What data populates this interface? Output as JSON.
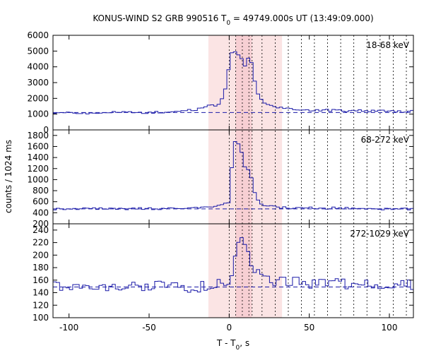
{
  "chart_data": {
    "type": "line",
    "title": {
      "prefix": "KONUS-WIND S2 GRB 990516 T",
      "sub": "0",
      "suffix": " = 49749.000s UT (13:49:09.000)"
    },
    "xlabel": {
      "prefix": "T - T",
      "sub": "0",
      "suffix": ", s"
    },
    "ylabel": "counts / 1024 ms",
    "xlim": [
      -110,
      115
    ],
    "x_ticks": [
      -100,
      -50,
      0,
      50,
      100
    ],
    "bin_width_s": 2.048,
    "colors": {
      "line": "#1a1aa8",
      "baseline": "#1a1aa8",
      "shade": "#fbe4e4",
      "shade_inner": "#f7cfd3"
    },
    "shaded_interval": [
      -13,
      33
    ],
    "inner_shaded_interval": [
      4,
      14
    ],
    "vertical_dotted_lines": [
      0,
      4.1,
      8.2,
      12.3,
      14.3,
      20.5,
      28.7,
      36.9,
      45.1,
      53.2,
      61.4,
      69.6,
      77.8,
      86.0,
      94.2,
      102.4,
      110.6
    ],
    "panels": [
      {
        "label": "18-68 keV",
        "ylim": [
          0,
          6000
        ],
        "y_ticks": [
          0,
          1000,
          2000,
          3000,
          4000,
          5000,
          6000
        ],
        "baseline": 1100,
        "light_curve": [
          [
            -110,
            1100
          ],
          [
            -90,
            1080
          ],
          [
            -70,
            1100
          ],
          [
            -50,
            1110
          ],
          [
            -40,
            1130
          ],
          [
            -30,
            1180
          ],
          [
            -20,
            1280
          ],
          [
            -14,
            1450
          ],
          [
            -10,
            1700
          ],
          [
            -8,
            1400
          ],
          [
            -5,
            1900
          ],
          [
            -2,
            2700
          ],
          [
            -1,
            3300
          ],
          [
            0,
            4200
          ],
          [
            1.5,
            4900
          ],
          [
            3,
            5000
          ],
          [
            5,
            4750
          ],
          [
            7,
            4600
          ],
          [
            9,
            4200
          ],
          [
            10,
            4000
          ],
          [
            11,
            4300
          ],
          [
            12.5,
            4750
          ],
          [
            14,
            4200
          ],
          [
            16,
            3100
          ],
          [
            18,
            2300
          ],
          [
            20,
            1900
          ],
          [
            22,
            1700
          ],
          [
            25,
            1550
          ],
          [
            28,
            1450
          ],
          [
            32,
            1380
          ],
          [
            38,
            1320
          ],
          [
            45,
            1280
          ],
          [
            55,
            1250
          ],
          [
            65,
            1230
          ],
          [
            80,
            1210
          ],
          [
            100,
            1190
          ],
          [
            115,
            1180
          ]
        ]
      },
      {
        "label": "68-272 keV",
        "ylim": [
          200,
          1900
        ],
        "y_ticks": [
          200,
          400,
          600,
          800,
          1000,
          1200,
          1400,
          1600,
          1800
        ],
        "baseline": 470,
        "light_curve": [
          [
            -110,
            470
          ],
          [
            -80,
            470
          ],
          [
            -60,
            475
          ],
          [
            -40,
            470
          ],
          [
            -20,
            480
          ],
          [
            -10,
            500
          ],
          [
            -5,
            540
          ],
          [
            -2,
            560
          ],
          [
            0,
            580
          ],
          [
            1,
            1000
          ],
          [
            3,
            1700
          ],
          [
            5,
            1700
          ],
          [
            7,
            1580
          ],
          [
            9,
            1300
          ],
          [
            11,
            1100
          ],
          [
            12.5,
            1260
          ],
          [
            14,
            1000
          ],
          [
            16,
            750
          ],
          [
            18,
            620
          ],
          [
            20,
            560
          ],
          [
            25,
            520
          ],
          [
            30,
            500
          ],
          [
            40,
            490
          ],
          [
            60,
            485
          ],
          [
            80,
            480
          ],
          [
            100,
            470
          ],
          [
            115,
            465
          ]
        ]
      },
      {
        "label": "272-1029 keV",
        "ylim": [
          100,
          250
        ],
        "y_ticks": [
          100,
          120,
          140,
          160,
          180,
          200,
          220,
          240
        ],
        "baseline": 149,
        "light_curve": [
          [
            -110,
            150
          ],
          [
            -100,
            148
          ],
          [
            -90,
            152
          ],
          [
            -80,
            149
          ],
          [
            -70,
            151
          ],
          [
            -60,
            150
          ],
          [
            -50,
            148
          ],
          [
            -40,
            151
          ],
          [
            -30,
            150
          ],
          [
            -20,
            149
          ],
          [
            -10,
            151
          ],
          [
            -5,
            153
          ],
          [
            0,
            155
          ],
          [
            2,
            170
          ],
          [
            4,
            195
          ],
          [
            6,
            215
          ],
          [
            8,
            230
          ],
          [
            10,
            225
          ],
          [
            12,
            210
          ],
          [
            14,
            190
          ],
          [
            16,
            178
          ],
          [
            18,
            170
          ],
          [
            22,
            165
          ],
          [
            26,
            162
          ],
          [
            30,
            158
          ],
          [
            40,
            156
          ],
          [
            50,
            155
          ],
          [
            60,
            154
          ],
          [
            70,
            155
          ],
          [
            80,
            154
          ],
          [
            90,
            153
          ],
          [
            100,
            154
          ],
          [
            115,
            153
          ]
        ]
      }
    ]
  }
}
